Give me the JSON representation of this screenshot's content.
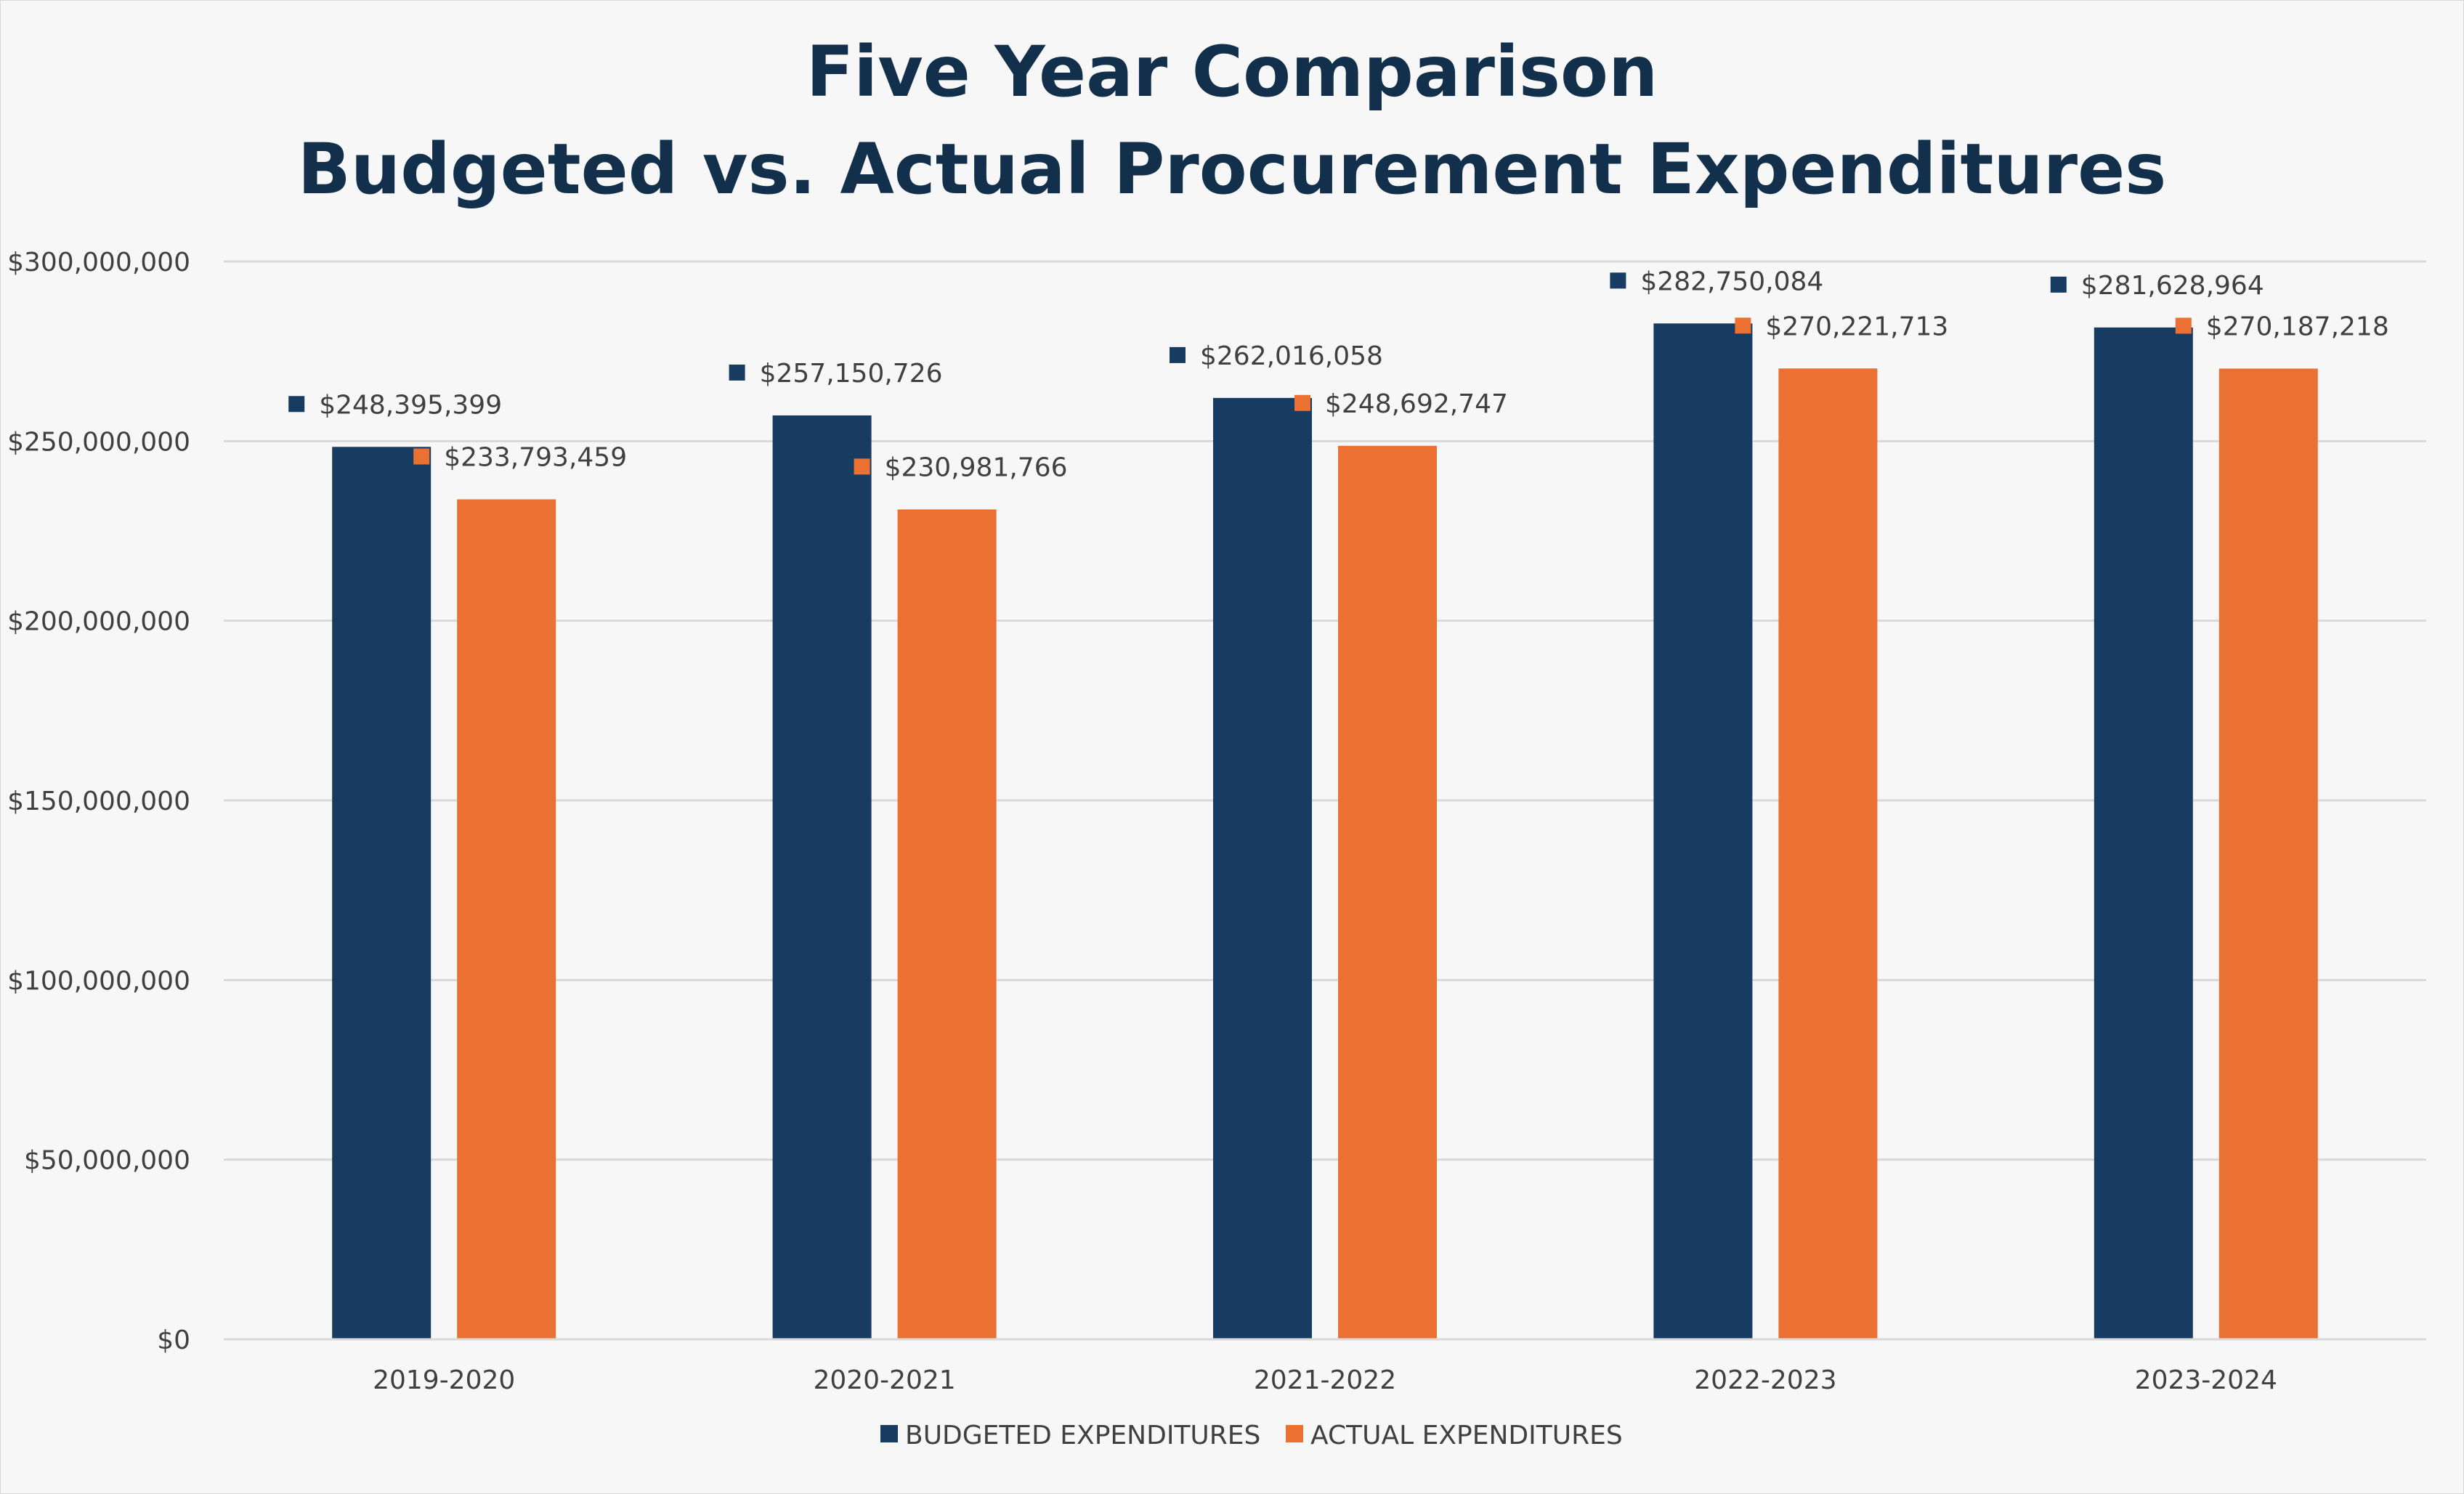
{
  "chart_data": {
    "type": "bar",
    "title_lines": [
      "Five Year Comparison",
      "Budgeted vs. Actual Procurement Expenditures"
    ],
    "categories": [
      "2019-2020",
      "2020-2021",
      "2021-2022",
      "2022-2023",
      "2023-2024"
    ],
    "series": [
      {
        "name": "BUDGETED EXPENDITURES",
        "color": "#173b61",
        "values": [
          248395399,
          257150726,
          262016058,
          282750084,
          281628964
        ],
        "labels": [
          "$248,395,399",
          "$257,150,726",
          "$262,016,058",
          "$282,750,084",
          "$281,628,964"
        ]
      },
      {
        "name": "ACTUAL EXPENDITURES",
        "color": "#ea7132",
        "values": [
          233793459,
          230981766,
          248692747,
          270221713,
          270187218
        ],
        "labels": [
          "$233,793,459",
          "$230,981,766",
          "$248,692,747",
          "$270,221,713",
          "$270,187,218"
        ]
      }
    ],
    "y_ticks": [
      0,
      50000000,
      100000000,
      150000000,
      200000000,
      250000000,
      300000000
    ],
    "y_tick_labels": [
      "$0",
      "$50,000,000",
      "$100,000,000",
      "$150,000,000",
      "$200,000,000",
      "$250,000,000",
      "$300,000,000"
    ],
    "ylim": [
      0,
      300000000
    ],
    "grid": true,
    "legend_position": "bottom",
    "xlabel": "",
    "ylabel": ""
  }
}
